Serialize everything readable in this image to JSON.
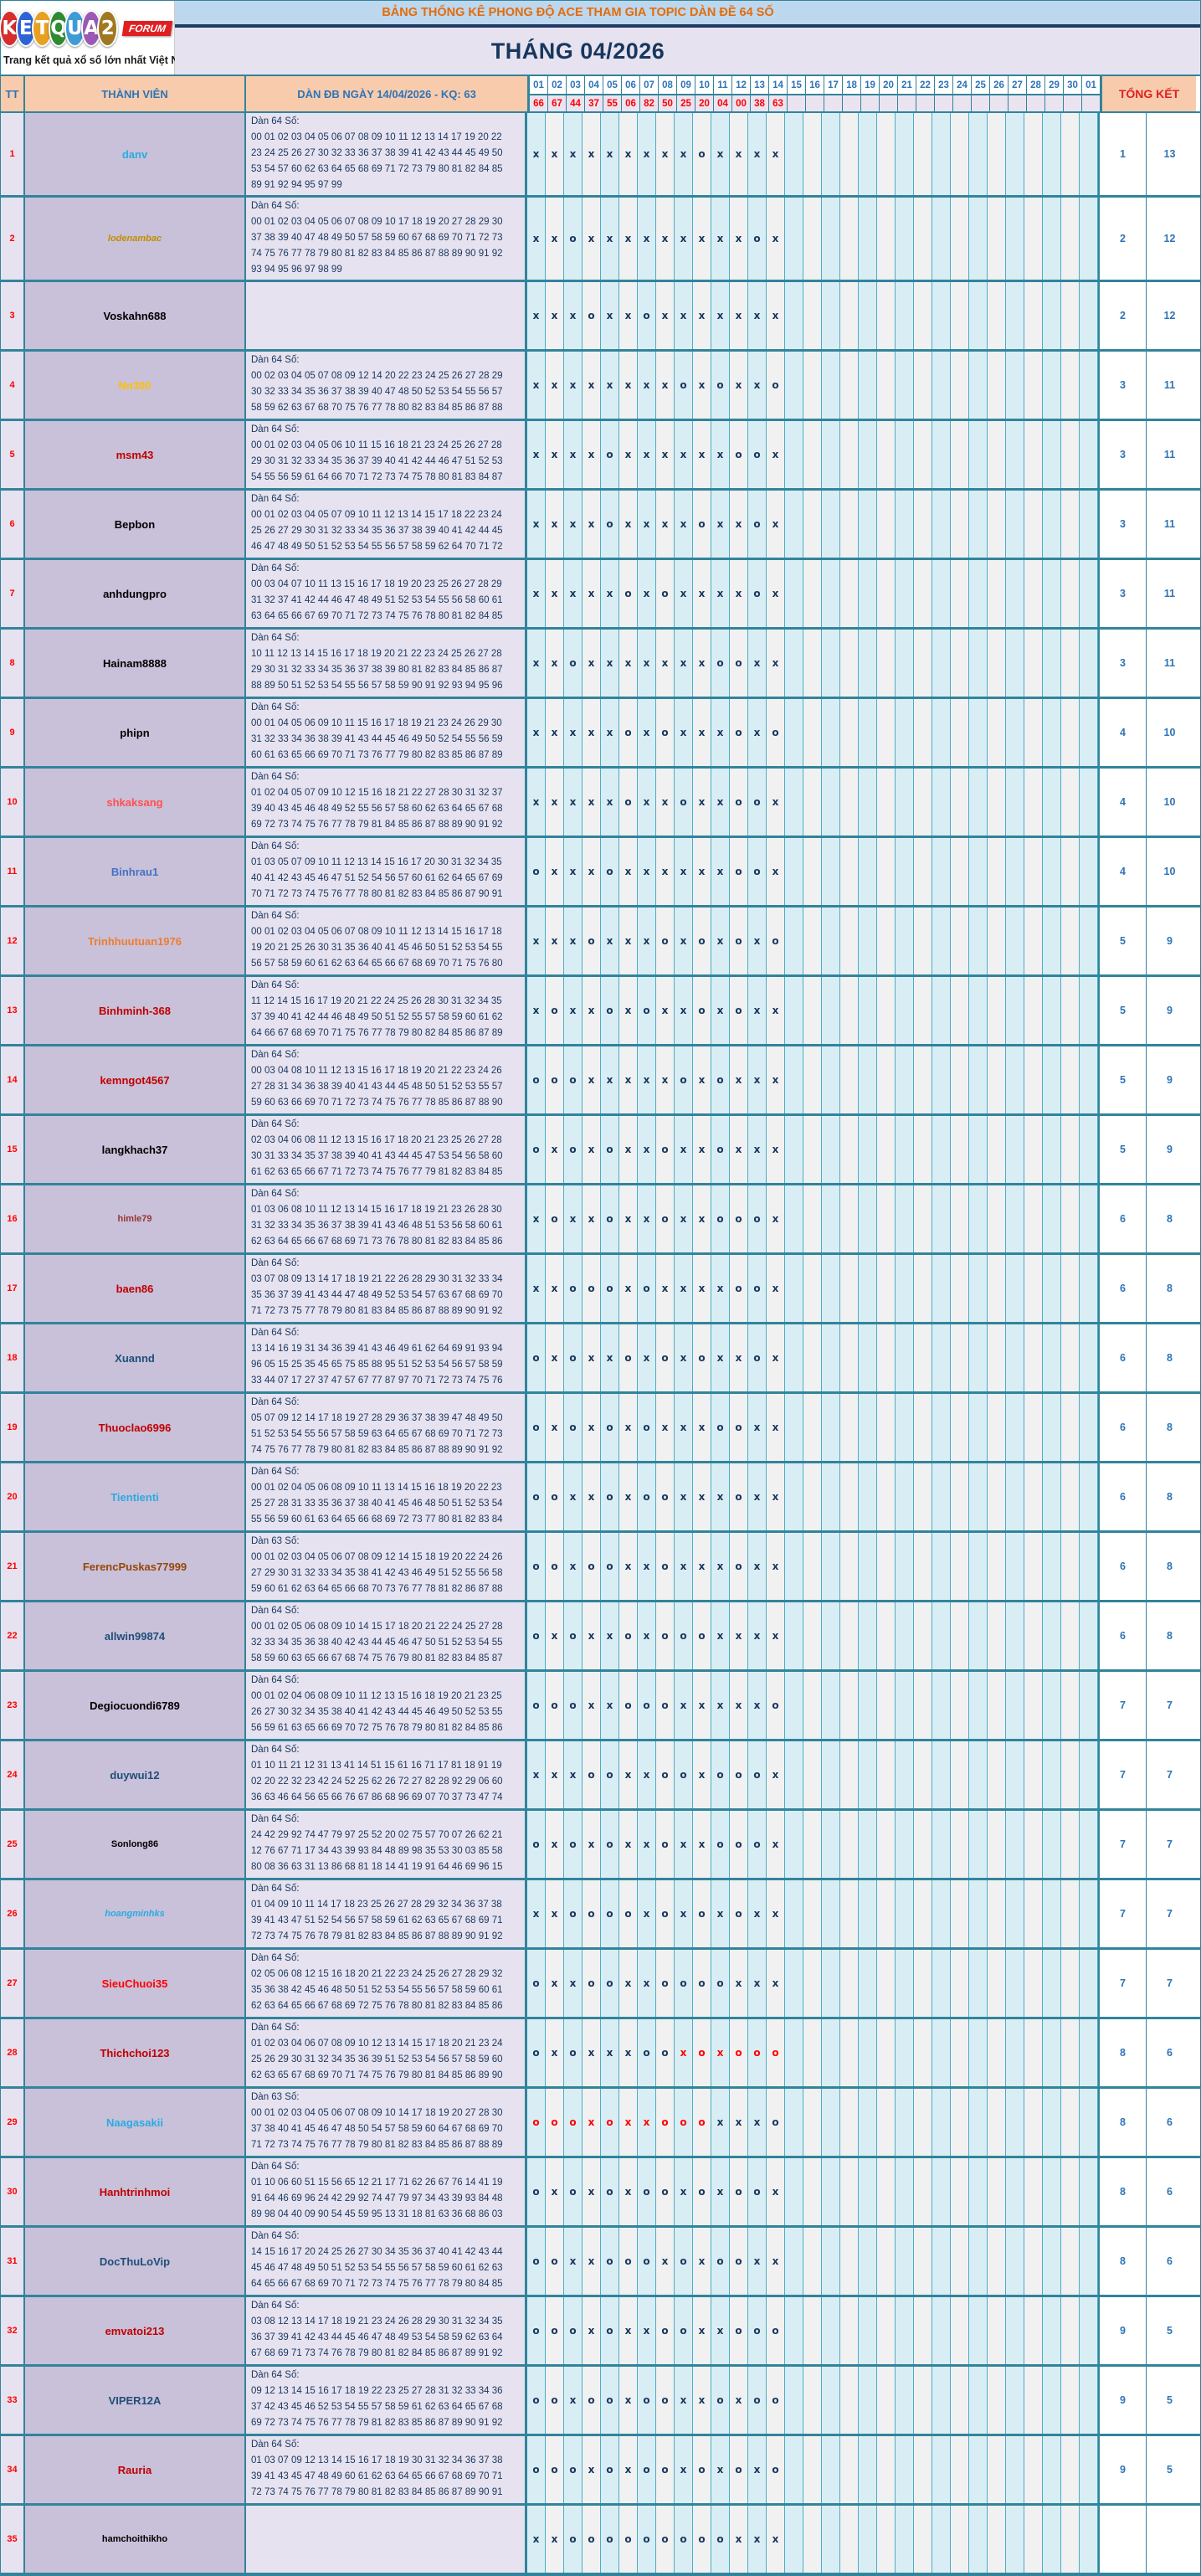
{
  "header": {
    "logo": {
      "letters": [
        {
          "ch": "K",
          "bg": "#D62E2E"
        },
        {
          "ch": "E",
          "bg": "#2E63D6"
        },
        {
          "ch": "T",
          "bg": "#E8A020"
        },
        {
          "ch": "Q",
          "bg": "#2E8B2E"
        },
        {
          "ch": "U",
          "bg": "#3E9BD6"
        },
        {
          "ch": "A",
          "bg": "#9B59B6"
        },
        {
          "ch": "2",
          "bg": "#A07820"
        }
      ],
      "forum_badge": "FORUM",
      "tagline": "Trang kết quả xổ số lớn nhất Việt Nam"
    },
    "banner_title": "BẢNG THỐNG KÊ PHONG ĐỘ ACE THAM GIA TOPIC DÀN ĐỀ 64 SỐ",
    "month_title": "THÁNG 04/2026"
  },
  "table": {
    "col_tt": "TT",
    "col_member": "THÀNH VIÊN",
    "col_dan": "DÀN ĐB NGÀY 14/04/2026 - KQ: 63",
    "col_total": "TỔNG KẾT",
    "day_columns": [
      "01",
      "02",
      "03",
      "04",
      "05",
      "06",
      "07",
      "08",
      "09",
      "10",
      "11",
      "12",
      "13",
      "14",
      "15",
      "16",
      "17",
      "18",
      "19",
      "20",
      "21",
      "22",
      "23",
      "24",
      "25",
      "26",
      "27",
      "28",
      "29",
      "30",
      "01"
    ],
    "day_results": [
      "66",
      "67",
      "44",
      "37",
      "55",
      "06",
      "82",
      "50",
      "25",
      "20",
      "04",
      "00",
      "38",
      "63"
    ],
    "mark_color": "#17375E",
    "mark_color_red": "#FF0000",
    "rows": [
      {
        "tt": "1",
        "member": "danv",
        "color": "#29ABE2",
        "small": false,
        "italic": false,
        "dan_title": "Dàn 64 Số:",
        "dan": "00 01 02 03 04 05 06 07 08 09 10 11 12 13 14 17 19 20 22\n23 24 25 26 27 30 32 33 36 37 38 39 41 42 43 44 45 49 50\n53 54 57 60 62 63 64 65 68 69 71 72 73 79 80 81 82 84 85\n89 91 92 94 95 97 99",
        "marks": "xxxxxxxxxoxxxx",
        "red": [],
        "o": "1",
        "x": "13"
      },
      {
        "tt": "2",
        "member": "lodenambac",
        "color": "#BF8F00",
        "small": true,
        "italic": true,
        "dan_title": "Dàn 64 Số:",
        "dan": "00 01 02 03 04 05 06 07 08 09 10 17 18 19 20 27 28 29 30\n37 38 39 40 47 48 49 50 57 58 59 60 67 68 69 70 71 72 73\n74 75 76 77 78 79 80 81 82 83 84 85 86 87 88 89 90 91 92\n93 94 95 96 97 98 99",
        "marks": "xxoxxxxxxxxxox",
        "red": [],
        "o": "2",
        "x": "12"
      },
      {
        "tt": "3",
        "member": "Voskahn688",
        "color": "#000000",
        "small": false,
        "italic": false,
        "dan_title": "",
        "dan": "",
        "marks": "xxxoxxoxxxxxxx",
        "red": [],
        "o": "2",
        "x": "12"
      },
      {
        "tt": "4",
        "member": "Nn300",
        "color": "#FFC000",
        "small": false,
        "italic": false,
        "dan_title": "Dàn 64 Số:",
        "dan": "00 02 03 04 05 07 08 09 12 14 20 22 23 24 25 26 27 28 29\n30 32 33 34 35 36 37 38 39 40 47 48 50 52 53 54 55 56 57\n58 59 62 63 67 68 70 75 76 77 78 80 82 83 84 85 86 87 88",
        "marks": "xxxxxxxxoxoxxo",
        "red": [],
        "o": "3",
        "x": "11"
      },
      {
        "tt": "5",
        "member": "msm43",
        "color": "#C00000",
        "small": false,
        "italic": false,
        "dan_title": "Dàn 64 Số:",
        "dan": "00 01 02 03 04 05 06 10 11 15 16 18 21 23 24 25 26 27 28\n29 30 31 32 33 34 35 36 37 39 40 41 42 44 46 47 51 52 53\n54 55 56 59 61 64 66 70 71 72 73 74 75 78 80 81 83 84 87",
        "marks": "xxxxoxxxxxxoox",
        "red": [],
        "o": "3",
        "x": "11"
      },
      {
        "tt": "6",
        "member": "Bepbon",
        "color": "#000000",
        "small": false,
        "italic": false,
        "dan_title": "Dàn 64 Số:",
        "dan": "00 01 02 03 04 05 07 09 10 11 12 13 14 15 17 18 22 23 24\n25 26 27 29 30 31 32 33 34 35 36 37 38 39 40 41 42 44 45\n46 47 48 49 50 51 52 53 54 55 56 57 58 59 62 64 70 71 72",
        "marks": "xxxxoxxxxoxxox",
        "red": [],
        "o": "3",
        "x": "11"
      },
      {
        "tt": "7",
        "member": "anhdungpro",
        "color": "#000000",
        "small": false,
        "italic": false,
        "dan_title": "Dàn 64 Số:",
        "dan": "00 03 04 07 10 11 13 15 16 17 18 19 20 23 25 26 27 28 29\n31 32 37 41 42 44 46 47 48 49 51 52 53 54 55 56 58 60 61\n63 64 65 66 67 69 70 71 72 73 74 75 76 78 80 81 82 84 85",
        "marks": "xxxxxoxoxxxxox",
        "red": [],
        "o": "3",
        "x": "11"
      },
      {
        "tt": "8",
        "member": "Hainam8888",
        "color": "#000000",
        "small": false,
        "italic": false,
        "dan_title": "Dàn 64 Số:",
        "dan": "10 11 12 13 14 15 16 17 18 19 20 21 22 23 24 25 26 27 28\n29 30 31 32 33 34 35 36 37 38 39 80 81 82 83 84 85 86 87\n88 89 50 51 52 53 54 55 56 57 58 59 90 91 92 93 94 95 96",
        "marks": "xxoxxxxxxxooxx",
        "red": [],
        "o": "3",
        "x": "11"
      },
      {
        "tt": "9",
        "member": "phipn",
        "color": "#000000",
        "small": false,
        "italic": false,
        "dan_title": "Dàn 64 Số:",
        "dan": "00 01 04 05 06 09 10 11 15 16 17 18 19 21 23 24 26 29 30\n31 32 33 34 36 38 39 41 43 44 45 46 49 50 52 54 55 56 59\n60 61 63 65 66 69 70 71 73 76 77 79 80 82 83 85 86 87 89",
        "marks": "xxxxxoxoxxxoxo",
        "red": [],
        "o": "4",
        "x": "10"
      },
      {
        "tt": "10",
        "member": "shkaksang",
        "color": "#FF5050",
        "small": false,
        "italic": false,
        "dan_title": "Dàn 64 Số:",
        "dan": "01 02 04 05 07 09 10 12 15 16 18 21 22 27 28 30 31 32 37\n39 40 43 45 46 48 49 52 55 56 57 58 60 62 63 64 65 67 68\n69 72 73 74 75 76 77 78 79 81 84 85 86 87 88 89 90 91 92",
        "marks": "xxxxxoxxoxxoox",
        "red": [],
        "o": "4",
        "x": "10"
      },
      {
        "tt": "11",
        "member": "Binhrau1",
        "color": "#4472C4",
        "small": false,
        "italic": false,
        "dan_title": "Dàn 64 Số:",
        "dan": "01 03 05 07 09 10 11 12 13 14 15 16 17 20 30 31 32 34 35\n40 41 42 43 45 46 47 51 52 54 56 57 60 61 62 64 65 67 69\n70 71 72 73 74 75 76 77 78 80 81 82 83 84 85 86 87 90 91",
        "marks": "oxxxoxxxxxxoox",
        "red": [],
        "o": "4",
        "x": "10"
      },
      {
        "tt": "12",
        "member": "Trinhhuutuan1976",
        "color": "#ED7D31",
        "small": false,
        "italic": false,
        "dan_title": "Dàn 64 Số:",
        "dan": "00 01 02 03 04 05 06 07 08 09 10 11 12 13 14 15 16 17 18\n19 20 21 25 26 30 31 35 36 40 41 45 46 50 51 52 53 54 55\n56 57 58 59 60 61 62 63 64 65 66 67 68 69 70 71 75 76 80",
        "marks": "xxxoxxxoxoxoxo",
        "red": [],
        "o": "5",
        "x": "9"
      },
      {
        "tt": "13",
        "member": "Binhminh-368",
        "color": "#C00000",
        "small": false,
        "italic": false,
        "dan_title": "Dàn 64 Số:",
        "dan": "11 12 14 15 16 17 19 20 21 22 24 25 26 28 30 31 32 34 35\n37 39 40 41 42 44 46 48 49 50 51 52 55 57 58 59 60 61 62\n64 66 67 68 69 70 71 75 76 77 78 79 80 82 84 85 86 87 89",
        "marks": "xoxxoxoxxoxoxx",
        "red": [],
        "o": "5",
        "x": "9"
      },
      {
        "tt": "14",
        "member": "kemngot4567",
        "color": "#C00000",
        "small": false,
        "italic": false,
        "dan_title": "Dàn 64 Số:",
        "dan": "00 03 04 08 10 11 12 13 15 16 17 18 19 20 21 22 23 24 26\n27 28 31 34 36 38 39 40 41 43 44 45 48 50 51 52 53 55 57\n59 60 63 66 69 70 71 72 73 74 75 76 77 78 85 86 87 88 90",
        "marks": "oooxxxxxoxoxxx",
        "red": [],
        "o": "5",
        "x": "9"
      },
      {
        "tt": "15",
        "member": "langkhach37",
        "color": "#000000",
        "small": false,
        "italic": false,
        "dan_title": "Dàn 64 Số:",
        "dan": "02 03 04 06 08 11 12 13 15 16 17 18 20 21 23 25 26 27 28\n30 31 33 34 35 37 38 39 40 41 43 44 45 47 53 54 56 58 60\n61 62 63 65 66 67 71 72 73 74 75 76 77 79 81 82 83 84 85",
        "marks": "oxoxoxxoxxoxxx",
        "red": [],
        "o": "5",
        "x": "9"
      },
      {
        "tt": "16",
        "member": "himle79",
        "color": "#963634",
        "small": true,
        "italic": false,
        "dan_title": "Dàn 64 Số:",
        "dan": "01 03 06 08 10 11 12 13 14 15 16 17 18 19 21 23 26 28 30\n31 32 33 34 35 36 37 38 39 41 43 46 48 51 53 56 58 60 61\n62 63 64 65 66 67 68 69 71 73 76 78 80 81 82 83 84 85 86",
        "marks": "xoxxoxxoxxooox",
        "red": [],
        "o": "6",
        "x": "8"
      },
      {
        "tt": "17",
        "member": "baen86",
        "color": "#C00000",
        "small": false,
        "italic": false,
        "dan_title": "Dàn 64 Số:",
        "dan": "03 07 08 09 13 14 17 18 19 21 22 26 28 29 30 31 32 33 34\n35 36 37 39 41 43 44 47 48 49 52 53 54 57 63 67 68 69 70\n71 72 73 75 77 78 79 80 81 83 84 85 86 87 88 89 90 91 92",
        "marks": "xxoooxoxxxxoox",
        "red": [],
        "o": "6",
        "x": "8"
      },
      {
        "tt": "18",
        "member": "Xuannd",
        "color": "#1F4E79",
        "small": false,
        "italic": false,
        "dan_title": "Dàn 64 Số:",
        "dan": "13 14 16 19 31 34 36 39 41 43 46 49 61 62 64 69 91 93 94\n96 05 15 25 35 45 65 75 85 88 95 51 52 53 54 56 57 58 59\n33 44 07 17 27 37 47 57 67 77 87 97 70 71 72 73 74 75 76",
        "marks": "oxoxxoxoxoxxox",
        "red": [],
        "o": "6",
        "x": "8"
      },
      {
        "tt": "19",
        "member": "Thuoclao6996",
        "color": "#C00000",
        "small": false,
        "italic": false,
        "dan_title": "Dàn 64 Số:",
        "dan": "05 07 09 12 14 17 18 19 27 28 29 36 37 38 39 47 48 49 50\n51 52 53 54 55 56 57 58 59 63 64 65 67 68 69 70 71 72 73\n74 75 76 77 78 79 80 81 82 83 84 85 86 87 88 89 90 91 92",
        "marks": "oxoxoxoxxxooxx",
        "red": [],
        "o": "6",
        "x": "8"
      },
      {
        "tt": "20",
        "member": "Tientienti",
        "color": "#29ABE2",
        "small": false,
        "italic": false,
        "dan_title": "Dàn 64 Số:",
        "dan": "00 01 02 04 05 06 08 09 10 11 13 14 15 16 18 19 20 22 23\n25 27 28 31 33 35 36 37 38 40 41 45 46 48 50 51 52 53 54\n55 56 59 60 61 63 64 65 66 68 69 72 73 77 80 81 82 83 84",
        "marks": "ooxxoxooxxxoxx",
        "red": [],
        "o": "6",
        "x": "8"
      },
      {
        "tt": "21",
        "member": "FerencPuskas77999",
        "color": "#974706",
        "small": false,
        "italic": false,
        "dan_title": "Dàn 63 Số:",
        "dan": "00 01 02 03 04 05 06 07 08 09 12 14 15 18 19 20 22 24 26\n27 29 30 31 32 33 34 35 38 41 42 43 46 49 51 52 55 56 58\n59 60 61 62 63 64 65 66 68 70 73 76 77 78 81 82 86 87 88",
        "marks": "ooxooxxoxxxoxx",
        "red": [],
        "o": "6",
        "x": "8"
      },
      {
        "tt": "22",
        "member": "allwin99874",
        "color": "#1F4E79",
        "small": false,
        "italic": false,
        "dan_title": "Dàn 64 Số:",
        "dan": "00 01 02 05 06 08 09 10 14 15 17 18 20 21 22 24 25 27 28\n32 33 34 35 36 38 40 42 43 44 45 46 47 50 51 52 53 54 55\n58 59 60 63 65 66 67 68 74 75 76 79 80 81 82 83 84 85 87",
        "marks": "oxoxxoxoooxxxx",
        "red": [],
        "o": "6",
        "x": "8"
      },
      {
        "tt": "23",
        "member": "Degiocuondi6789",
        "color": "#000000",
        "small": false,
        "italic": false,
        "dan_title": "Dàn 64 Số:",
        "dan": "00 01 02 04 06 08 09 10 11 12 13 15 16 18 19 20 21 23 25\n26 27 30 32 34 35 38 40 41 42 43 44 45 46 49 50 52 53 55\n56 59 61 63 65 66 69 70 72 75 76 78 79 80 81 82 84 85 86",
        "marks": "oooxxoooxxxxxo",
        "red": [],
        "o": "7",
        "x": "7"
      },
      {
        "tt": "24",
        "member": "duywui12",
        "color": "#1F4E79",
        "small": false,
        "italic": false,
        "dan_title": "Dàn 64 Số:",
        "dan": "01 10 11 21 12 31 13 41 14 51 15 61 16 71 17 81 18 91 19\n02 20 22 32 23 42 24 52 25 62 26 72 27 82 28 92 29 06 60\n36 63 46 64 56 65 66 76 67 86 68 96 69 07 70 37 73 47 74",
        "marks": "xxxooxxooxooox",
        "red": [],
        "o": "7",
        "x": "7"
      },
      {
        "tt": "25",
        "member": "Sonlong86",
        "color": "#000000",
        "small": true,
        "italic": false,
        "dan_title": "Dàn 64 Số:",
        "dan": "24 42 29 92 74 47 79 97 25 52 20 02 75 57 70 07 26 62 21\n12 76 67 71 17 34 43 39 93 84 48 89 98 35 53 30 03 85 58\n80 08 36 63 31 13 86 68 81 18 14 41 19 91 64 46 69 96 15",
        "marks": "oxoxoxxoxxooox",
        "red": [],
        "o": "7",
        "x": "7"
      },
      {
        "tt": "26",
        "member": "hoangminhks",
        "color": "#29ABE2",
        "small": true,
        "italic": true,
        "dan_title": "Dàn 64 Số:",
        "dan": "01 04 09 10 11 14 17 18 23 25 26 27 28 29 32 34 36 37 38\n39 41 43 47 51 52 54 56 57 58 59 61 62 63 65 67 68 69 71\n72 73 74 75 76 78 79 81 82 83 84 85 86 87 88 89 90 91 92",
        "marks": "xxooooxoxoxoxx",
        "red": [],
        "o": "7",
        "x": "7"
      },
      {
        "tt": "27",
        "member": "SieuChuoi35",
        "color": "#FF0000",
        "small": false,
        "italic": false,
        "dan_title": "Dàn 64 Số:",
        "dan": "02 05 06 08 12 15 16 18 20 21 22 23 24 25 26 27 28 29 32\n35 36 38 42 45 46 48 50 51 52 53 54 55 56 57 58 59 60 61\n62 63 64 65 66 67 68 69 72 75 76 78 80 81 82 83 84 85 86",
        "marks": "oxxooxxooooxxx",
        "red": [],
        "o": "7",
        "x": "7"
      },
      {
        "tt": "28",
        "member": "Thichchoi123",
        "color": "#C00000",
        "small": false,
        "italic": false,
        "dan_title": "Dàn 64 Số:",
        "dan": "01 02 03 04 06 07 08 09 10 12 13 14 15 17 18 20 21 23 24\n25 26 29 30 31 32 34 35 36 39 51 52 53 54 56 57 58 59 60\n62 63 65 67 68 69 70 71 74 75 76 79 80 81 84 85 86 89 90",
        "marks": "oxoxxxooxoxooo",
        "red": [
          8,
          9,
          10,
          11,
          12,
          13
        ],
        "o": "8",
        "x": "6"
      },
      {
        "tt": "29",
        "member": "Naagasakii",
        "color": "#29ABE2",
        "small": false,
        "italic": false,
        "dan_title": "Dàn 63 Số:",
        "dan": "00 01 02 03 04 05 06 07 08 09 10 14 17 18 19 20 27 28 30\n37 38 40 41 45 46 47 48 50 54 57 58 59 60 64 67 68 69 70\n71 72 73 74 75 76 77 78 79 80 81 82 83 84 85 86 87 88 89",
        "marks": "oooxoxxoooxxxo",
        "red": [
          0,
          1,
          2,
          3,
          4,
          5,
          6,
          7,
          8,
          9
        ],
        "o": "8",
        "x": "6"
      },
      {
        "tt": "30",
        "member": "Hanhtrinhmoi",
        "color": "#C00000",
        "small": false,
        "italic": false,
        "dan_title": "Dàn 64 Số:",
        "dan": "01 10 06 60 51 15 56 65 12 21 17 71 62 26 67 76 14 41 19\n91 64 46 69 96 24 42 29 92 74 47 79 97 34 43 39 93 84 48\n89 98 04 40 09 90 54 45 59 95 13 31 18 81 63 36 68 86 03",
        "marks": "oxoxoxooxoxoox",
        "red": [],
        "o": "8",
        "x": "6"
      },
      {
        "tt": "31",
        "member": "DocThuLoVip",
        "color": "#1F4E79",
        "small": false,
        "italic": false,
        "dan_title": "Dàn 64 Số:",
        "dan": "14 15 16 17 20 24 25 26 27 30 34 35 36 37 40 41 42 43 44\n45 46 47 48 49 50 51 52 53 54 55 56 57 58 59 60 61 62 63\n64 65 66 67 68 69 70 71 72 73 74 75 76 77 78 79 80 84 85",
        "marks": "ooxxoooxoxooxx",
        "red": [],
        "o": "8",
        "x": "6"
      },
      {
        "tt": "32",
        "member": "emvatoi213",
        "color": "#C00000",
        "small": false,
        "italic": false,
        "dan_title": "Dàn 64 Số:",
        "dan": "03 08 12 13 14 17 18 19 21 23 24 26 28 29 30 31 32 34 35\n36 37 39 41 42 43 44 45 46 47 48 49 53 54 58 59 62 63 64\n67 68 69 71 73 74 76 78 79 80 81 82 84 85 86 87 89 91 92",
        "marks": "oooxoxxooxxooo",
        "red": [],
        "o": "9",
        "x": "5"
      },
      {
        "tt": "33",
        "member": "VIPER12A",
        "color": "#1F4E79",
        "small": false,
        "italic": false,
        "dan_title": "Dàn 64 Số:",
        "dan": "09 12 13 14 15 16 17 18 19 22 23 25 27 28 31 32 33 34 36\n37 42 43 45 46 52 53 54 55 57 58 59 61 62 63 64 65 67 68\n69 72 73 74 75 76 77 78 79 81 82 83 85 86 87 89 90 91 92",
        "marks": "ooxooxooxxoxoo",
        "red": [],
        "o": "9",
        "x": "5"
      },
      {
        "tt": "34",
        "member": "Rauria",
        "color": "#C00000",
        "small": false,
        "italic": false,
        "dan_title": "Dàn 64 Số:",
        "dan": "01 03 07 09 12 13 14 15 16 17 18 19 30 31 32 34 36 37 38\n39 41 43 45 47 48 49 60 61 62 63 64 65 66 67 68 69 70 71\n72 73 74 75 76 77 78 79 80 81 82 83 84 85 86 87 89 90 91",
        "marks": "oooxoxooxoxoxo",
        "red": [],
        "o": "9",
        "x": "5"
      },
      {
        "tt": "35",
        "member": "hamchoithikho",
        "color": "#000000",
        "small": true,
        "italic": false,
        "dan_title": "",
        "dan": "",
        "marks": "xxoooooooooxxx",
        "red": [],
        "o": "",
        "x": ""
      }
    ]
  }
}
